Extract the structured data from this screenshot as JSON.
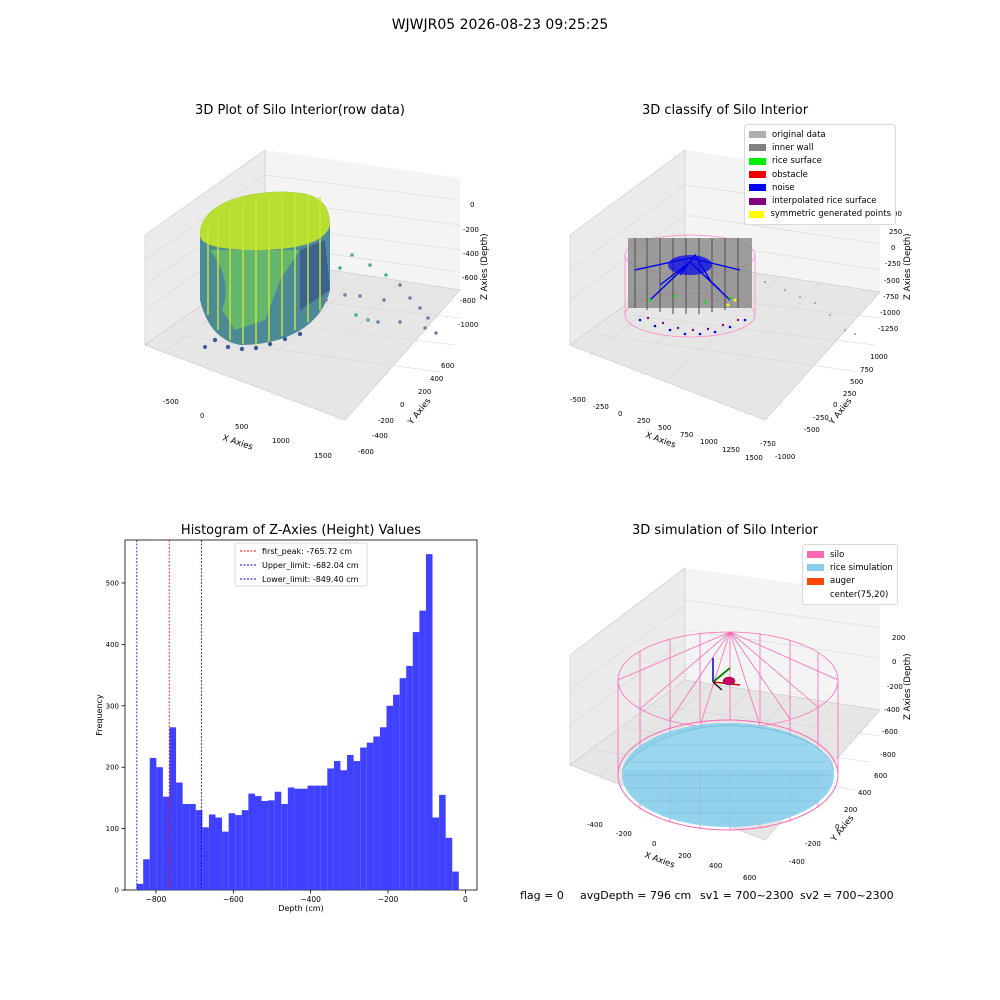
{
  "figure": {
    "suptitle": "WJWJR05 2026-08-23 09:25:25",
    "status": {
      "flag": "flag = 0",
      "avg_depth": "avgDepth = 796 cm",
      "sv1": "sv1 = 700~2300",
      "sv2": "sv2 = 700~2300"
    }
  },
  "plots": {
    "raw": {
      "title": "3D Plot of Silo Interior(row data)",
      "xlabel": "X Axies",
      "ylabel": "Y Axies",
      "zlabel": "Z Axies (Depth)",
      "xticks": [
        "-500",
        "0",
        "500",
        "1000",
        "1500"
      ],
      "yticks": [
        "600",
        "400",
        "200",
        "0",
        "-200",
        "-400",
        "-600"
      ],
      "zticks": [
        "0",
        "-200",
        "-400",
        "-600",
        "-800",
        "-1000"
      ]
    },
    "classify": {
      "title": "3D classify of Silo Interior",
      "xlabel": "X Axies",
      "ylabel": "Y Axies",
      "zlabel": "Z Axies (Depth)",
      "xticks": [
        "-500",
        "-250",
        "0",
        "250",
        "500",
        "750",
        "1000",
        "1250",
        "1500"
      ],
      "yticks": [
        "1000",
        "750",
        "500",
        "250",
        "0",
        "-250",
        "-500",
        "-750",
        "-1000"
      ],
      "zticks": [
        "250",
        "0",
        "-250",
        "-500",
        "-750",
        "-1000",
        "-1250"
      ],
      "ztop_partial": "00",
      "legend": [
        {
          "label": "original data",
          "color": "#b0b0b0"
        },
        {
          "label": "inner wall",
          "color": "#808080"
        },
        {
          "label": "rice surface",
          "color": "#00ee00"
        },
        {
          "label": "obstacle",
          "color": "#ee0000"
        },
        {
          "label": "noise",
          "color": "#0000ee"
        },
        {
          "label": "interpolated rice surface",
          "color": "#800080"
        },
        {
          "label": "symmetric generated points",
          "color": "#ffff00"
        }
      ]
    },
    "simulation": {
      "title": "3D simulation of Silo Interior",
      "xlabel": "X Axies",
      "ylabel": "Y Axies",
      "zlabel": "Z Axies (Depth)",
      "xticks": [
        "-400",
        "-200",
        "0",
        "200",
        "400",
        "600"
      ],
      "yticks": [
        "600",
        "400",
        "200",
        "0",
        "-200",
        "-400"
      ],
      "zticks": [
        "200",
        "0",
        "-200",
        "-400",
        "-600",
        "-800"
      ],
      "legend": [
        {
          "label": "silo",
          "color": "#ff69b4"
        },
        {
          "label": "rice simulation",
          "color": "#87ceeb"
        },
        {
          "label": "auger",
          "color": "#ff4500"
        },
        {
          "label": "center(75,20)",
          "color": "#ffffff"
        }
      ]
    }
  },
  "chart_data": {
    "type": "bar",
    "title": "Histogram of Z-Axies (Height) Values",
    "xlabel": "Depth (cm)",
    "ylabel": "Frequency",
    "xlim": [
      -880,
      30
    ],
    "ylim": [
      0,
      570
    ],
    "xticks": [
      -800,
      -600,
      -400,
      -200,
      0
    ],
    "yticks": [
      0,
      100,
      200,
      300,
      400,
      500
    ],
    "bin_start": -850,
    "bin_width": 17,
    "values": [
      10,
      50,
      215,
      200,
      152,
      265,
      175,
      140,
      140,
      130,
      102,
      123,
      118,
      95,
      125,
      122,
      130,
      157,
      153,
      145,
      146,
      160,
      140,
      167,
      165,
      165,
      170,
      170,
      170,
      198,
      210,
      195,
      220,
      210,
      232,
      240,
      250,
      265,
      300,
      318,
      345,
      365,
      420,
      455,
      547,
      118,
      155,
      85,
      30
    ],
    "color": "#4040ff",
    "lines": [
      {
        "label": "first_peak: -765.72 cm",
        "x": -765.72,
        "color": "#ff0000"
      },
      {
        "label": "Upper_limit: -682.04 cm",
        "x": -682.04,
        "color": "#0000cc"
      },
      {
        "label": "Lower_limit: -849.40 cm",
        "x": -849.4,
        "color": "#0000cc"
      }
    ]
  }
}
